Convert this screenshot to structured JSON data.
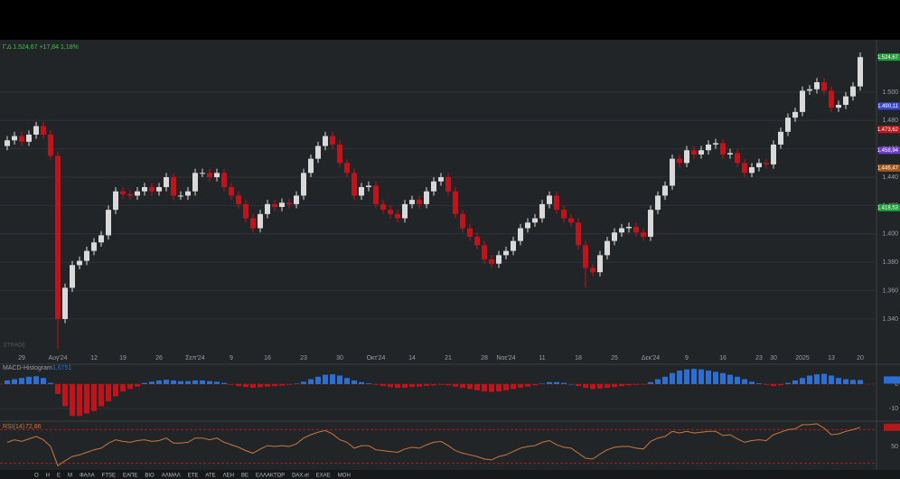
{
  "header": {
    "quote": "Γ.Δ 1.524,67 +17,84 1,18%",
    "watermark": "ETRADE"
  },
  "chart_data": [
    {
      "type": "candlestick",
      "up_color": "#d9d9d9",
      "down_color": "#c0141c",
      "grid": true,
      "ylim": [
        1310,
        1535
      ],
      "yticks": [
        {
          "value": 1340,
          "label": "1.340"
        },
        {
          "value": 1360,
          "label": "1.360"
        },
        {
          "value": 1380,
          "label": "1.380"
        },
        {
          "value": 1400,
          "label": "1.400"
        },
        {
          "value": 1420,
          "label": "1.420"
        },
        {
          "value": 1440,
          "label": "1.440"
        },
        {
          "value": 1460,
          "label": "1.460"
        },
        {
          "value": 1480,
          "label": "1.480"
        },
        {
          "value": 1500,
          "label": "1.500"
        }
      ],
      "price_tags": [
        {
          "value": 1524.67,
          "label": "1.524,67",
          "color": "#1f9e3a"
        },
        {
          "value": 1490.11,
          "label": "1.490,11",
          "color": "#3b49c8"
        },
        {
          "value": 1473.62,
          "label": "1.473,62",
          "color": "#c0141c"
        },
        {
          "value": 1458.94,
          "label": "1.458,94",
          "color": "#6a3fc8"
        },
        {
          "value": 1446.47,
          "label": "1.446,47",
          "color": "#a0561a"
        },
        {
          "value": 1418.53,
          "label": "1.418,53",
          "color": "#1f9e3a"
        }
      ],
      "categories": [
        null,
        null,
        "29",
        null,
        null,
        null,
        null,
        "Αυγ'24",
        null,
        null,
        null,
        null,
        "12",
        null,
        null,
        null,
        "19",
        null,
        null,
        null,
        null,
        "26",
        null,
        null,
        null,
        null,
        "Σεπ'24",
        null,
        null,
        null,
        null,
        "9",
        null,
        null,
        null,
        null,
        "16",
        null,
        null,
        null,
        null,
        "23",
        null,
        null,
        null,
        null,
        "30",
        null,
        null,
        null,
        null,
        "Οκτ'24",
        null,
        null,
        null,
        null,
        "14",
        null,
        null,
        null,
        null,
        "21",
        null,
        null,
        null,
        null,
        "28",
        null,
        null,
        "Νοε'24",
        null,
        null,
        null,
        null,
        "11",
        null,
        null,
        null,
        null,
        "18",
        null,
        null,
        null,
        null,
        "25",
        null,
        null,
        null,
        null,
        "Δεκ'24",
        null,
        null,
        null,
        null,
        "9",
        null,
        null,
        null,
        null,
        "16",
        null,
        null,
        null,
        null,
        "23",
        null,
        "30",
        null,
        null,
        null,
        "2025",
        null,
        null,
        null,
        "13",
        null,
        null,
        null,
        "20"
      ],
      "candles": [
        [
          1462,
          1469,
          1459,
          1466
        ],
        [
          1466,
          1472,
          1463,
          1469
        ],
        [
          1469,
          1472,
          1462,
          1465
        ],
        [
          1465,
          1473,
          1462,
          1470
        ],
        [
          1470,
          1479,
          1467,
          1476
        ],
        [
          1476,
          1479,
          1467,
          1470
        ],
        [
          1470,
          1473,
          1452,
          1455
        ],
        [
          1455,
          1458,
          1319,
          1340
        ],
        [
          1340,
          1365,
          1337,
          1362
        ],
        [
          1362,
          1381,
          1359,
          1378
        ],
        [
          1378,
          1384,
          1375,
          1381
        ],
        [
          1381,
          1391,
          1378,
          1388
        ],
        [
          1388,
          1397,
          1385,
          1394
        ],
        [
          1394,
          1402,
          1391,
          1399
        ],
        [
          1399,
          1420,
          1396,
          1417
        ],
        [
          1417,
          1433,
          1414,
          1430
        ],
        [
          1430,
          1433,
          1425,
          1428
        ],
        [
          1428,
          1431,
          1424,
          1427
        ],
        [
          1427,
          1433,
          1424,
          1430
        ],
        [
          1430,
          1436,
          1427,
          1433
        ],
        [
          1433,
          1436,
          1427,
          1430
        ],
        [
          1430,
          1436,
          1427,
          1433
        ],
        [
          1433,
          1443,
          1430,
          1440
        ],
        [
          1440,
          1443,
          1424,
          1427
        ],
        [
          1427,
          1430,
          1424,
          1427
        ],
        [
          1427,
          1433,
          1424,
          1430
        ],
        [
          1430,
          1446,
          1427,
          1443
        ],
        [
          1443,
          1446,
          1440,
          1443
        ],
        [
          1443,
          1446,
          1437,
          1440
        ],
        [
          1440,
          1446,
          1437,
          1443
        ],
        [
          1443,
          1446,
          1430,
          1433
        ],
        [
          1433,
          1436,
          1424,
          1427
        ],
        [
          1427,
          1430,
          1418,
          1421
        ],
        [
          1421,
          1424,
          1408,
          1411
        ],
        [
          1411,
          1414,
          1401,
          1404
        ],
        [
          1404,
          1417,
          1401,
          1414
        ],
        [
          1414,
          1424,
          1411,
          1421
        ],
        [
          1421,
          1424,
          1416,
          1419
        ],
        [
          1419,
          1425,
          1416,
          1422
        ],
        [
          1422,
          1425,
          1418,
          1421
        ],
        [
          1421,
          1430,
          1418,
          1427
        ],
        [
          1427,
          1446,
          1424,
          1443
        ],
        [
          1443,
          1456,
          1440,
          1453
        ],
        [
          1453,
          1465,
          1450,
          1462
        ],
        [
          1462,
          1472,
          1459,
          1469
        ],
        [
          1469,
          1472,
          1460,
          1463
        ],
        [
          1463,
          1466,
          1447,
          1450
        ],
        [
          1450,
          1453,
          1440,
          1443
        ],
        [
          1443,
          1446,
          1424,
          1427
        ],
        [
          1427,
          1436,
          1424,
          1433
        ],
        [
          1433,
          1437,
          1430,
          1434
        ],
        [
          1434,
          1437,
          1418,
          1421
        ],
        [
          1421,
          1424,
          1414,
          1417
        ],
        [
          1417,
          1420,
          1411,
          1414
        ],
        [
          1414,
          1417,
          1408,
          1411
        ],
        [
          1411,
          1424,
          1408,
          1421
        ],
        [
          1421,
          1427,
          1418,
          1424
        ],
        [
          1424,
          1427,
          1418,
          1421
        ],
        [
          1421,
          1433,
          1418,
          1430
        ],
        [
          1430,
          1440,
          1427,
          1437
        ],
        [
          1437,
          1443,
          1434,
          1440
        ],
        [
          1440,
          1443,
          1427,
          1430
        ],
        [
          1430,
          1433,
          1411,
          1414
        ],
        [
          1414,
          1417,
          1401,
          1404
        ],
        [
          1404,
          1407,
          1395,
          1398
        ],
        [
          1398,
          1401,
          1389,
          1392
        ],
        [
          1392,
          1395,
          1379,
          1382
        ],
        [
          1382,
          1385,
          1376,
          1379
        ],
        [
          1379,
          1388,
          1376,
          1385
        ],
        [
          1385,
          1391,
          1382,
          1388
        ],
        [
          1388,
          1398,
          1385,
          1395
        ],
        [
          1395,
          1407,
          1392,
          1404
        ],
        [
          1404,
          1411,
          1401,
          1408
        ],
        [
          1408,
          1414,
          1405,
          1411
        ],
        [
          1411,
          1424,
          1408,
          1421
        ],
        [
          1421,
          1430,
          1418,
          1427
        ],
        [
          1427,
          1430,
          1414,
          1417
        ],
        [
          1417,
          1420,
          1408,
          1411
        ],
        [
          1411,
          1414,
          1405,
          1408
        ],
        [
          1408,
          1411,
          1389,
          1392
        ],
        [
          1392,
          1395,
          1362,
          1376
        ],
        [
          1376,
          1379,
          1370,
          1373
        ],
        [
          1373,
          1388,
          1370,
          1385
        ],
        [
          1385,
          1398,
          1382,
          1395
        ],
        [
          1395,
          1404,
          1392,
          1401
        ],
        [
          1401,
          1407,
          1398,
          1404
        ],
        [
          1404,
          1408,
          1401,
          1405
        ],
        [
          1405,
          1408,
          1398,
          1401
        ],
        [
          1401,
          1404,
          1395,
          1398
        ],
        [
          1398,
          1420,
          1395,
          1417
        ],
        [
          1417,
          1430,
          1414,
          1427
        ],
        [
          1427,
          1437,
          1424,
          1434
        ],
        [
          1434,
          1456,
          1431,
          1453
        ],
        [
          1453,
          1456,
          1447,
          1450
        ],
        [
          1450,
          1462,
          1447,
          1459
        ],
        [
          1459,
          1462,
          1453,
          1456
        ],
        [
          1456,
          1462,
          1453,
          1459
        ],
        [
          1459,
          1466,
          1456,
          1463
        ],
        [
          1463,
          1467,
          1460,
          1464
        ],
        [
          1464,
          1467,
          1453,
          1456
        ],
        [
          1456,
          1460,
          1453,
          1457
        ],
        [
          1457,
          1460,
          1447,
          1450
        ],
        [
          1450,
          1453,
          1440,
          1443
        ],
        [
          1443,
          1450,
          1440,
          1447
        ],
        [
          1447,
          1453,
          1444,
          1450
        ],
        [
          1450,
          1453,
          1446,
          1449
        ],
        [
          1449,
          1466,
          1446,
          1463
        ],
        [
          1463,
          1475,
          1460,
          1472
        ],
        [
          1472,
          1485,
          1469,
          1482
        ],
        [
          1482,
          1489,
          1479,
          1486
        ],
        [
          1486,
          1504,
          1483,
          1501
        ],
        [
          1501,
          1505,
          1498,
          1502
        ],
        [
          1502,
          1510,
          1499,
          1507
        ],
        [
          1507,
          1510,
          1498,
          1501
        ],
        [
          1501,
          1504,
          1486,
          1489
        ],
        [
          1489,
          1494,
          1486,
          1491
        ],
        [
          1491,
          1500,
          1488,
          1497
        ],
        [
          1497,
          1507,
          1494,
          1504
        ],
        [
          1504,
          1528,
          1501,
          1524.67
        ]
      ]
    },
    {
      "type": "bar",
      "title": "MACD-Histogram",
      "current": {
        "value": 1.6751,
        "label": "1,6751"
      },
      "pos_color": "#2a6fd1",
      "neg_color": "#c0141c",
      "ylim": [
        -14,
        7
      ],
      "yticks": [
        -10,
        0
      ],
      "values": [
        1.5,
        2,
        2.5,
        3,
        3.2,
        2.5,
        0.5,
        -4,
        -9,
        -13,
        -13,
        -12,
        -11,
        -9,
        -7,
        -5,
        -3,
        -2,
        -1,
        0.5,
        1,
        1.5,
        1.8,
        1.5,
        1.2,
        1.2,
        1.5,
        1.5,
        1.2,
        1,
        0.5,
        -0.3,
        -0.8,
        -1.2,
        -1.5,
        -1.3,
        -1,
        -0.8,
        -0.6,
        -0.3,
        0.2,
        1,
        2,
        3,
        3.8,
        4,
        3.5,
        2.5,
        1.5,
        0.8,
        0.3,
        -0.3,
        -0.8,
        -1.2,
        -1.5,
        -1.5,
        -1.2,
        -1,
        -0.7,
        -0.5,
        -0.3,
        -0.5,
        -1,
        -1.5,
        -2,
        -2.5,
        -3,
        -3.2,
        -3,
        -2.5,
        -2,
        -1.5,
        -1,
        -0.5,
        0.2,
        0.8,
        0.8,
        0.5,
        0,
        -0.8,
        -1.5,
        -2,
        -1.8,
        -1.5,
        -1.2,
        -0.8,
        -0.5,
        -0.3,
        -0.2,
        0.8,
        2,
        3,
        4.5,
        5.5,
        6,
        6.2,
        6,
        5.5,
        5,
        4.5,
        3.8,
        3,
        2,
        1,
        0.3,
        -0.3,
        -0.8,
        -0.5,
        0.5,
        1.5,
        2.5,
        3.5,
        4,
        4.2,
        3.5,
        2.5,
        2,
        1.7,
        1.6751
      ]
    },
    {
      "type": "line",
      "title": "RSI(14)",
      "current": {
        "value": 72.86,
        "label": "72,86"
      },
      "color": "#c9783a",
      "level_color": "#b01a1a",
      "levels": [
        30,
        70
      ],
      "ylim": [
        22,
        78
      ],
      "yticks": [
        50
      ],
      "values": [
        55,
        58,
        56,
        59,
        62,
        58,
        50,
        27,
        33,
        38,
        40,
        43,
        46,
        48,
        54,
        58,
        56,
        55,
        57,
        58,
        56,
        57,
        60,
        54,
        54,
        55,
        60,
        60,
        58,
        60,
        55,
        52,
        49,
        45,
        42,
        47,
        51,
        50,
        51,
        50,
        53,
        60,
        64,
        67,
        69,
        65,
        58,
        55,
        48,
        51,
        51,
        46,
        45,
        44,
        43,
        47,
        49,
        48,
        52,
        55,
        56,
        51,
        45,
        42,
        40,
        38,
        35,
        34,
        38,
        40,
        44,
        48,
        50,
        51,
        55,
        57,
        52,
        49,
        48,
        42,
        36,
        35,
        41,
        46,
        49,
        50,
        50,
        48,
        47,
        56,
        60,
        62,
        68,
        66,
        68,
        66,
        67,
        68,
        68,
        63,
        64,
        59,
        55,
        57,
        58,
        57,
        64,
        67,
        70,
        71,
        76,
        76,
        77,
        72,
        64,
        65,
        68,
        70,
        72.86
      ]
    }
  ],
  "toolbar": {
    "items": [
      "Ο",
      "Η",
      "Ε",
      "Μ",
      "ΦΑΛΑ",
      "FTSE",
      "ΕΑΠΕ",
      "ΒΙΟ",
      "ΑΛΜΑΛ",
      "ΕΤΕ",
      "ΑΤΕ",
      "ΛΕΗ",
      "ΒΕ",
      "ΕΛΛΑΚΤΩΡ",
      "DAX.el",
      "ΕΧΑΕ",
      "ΜΟΗ"
    ]
  }
}
